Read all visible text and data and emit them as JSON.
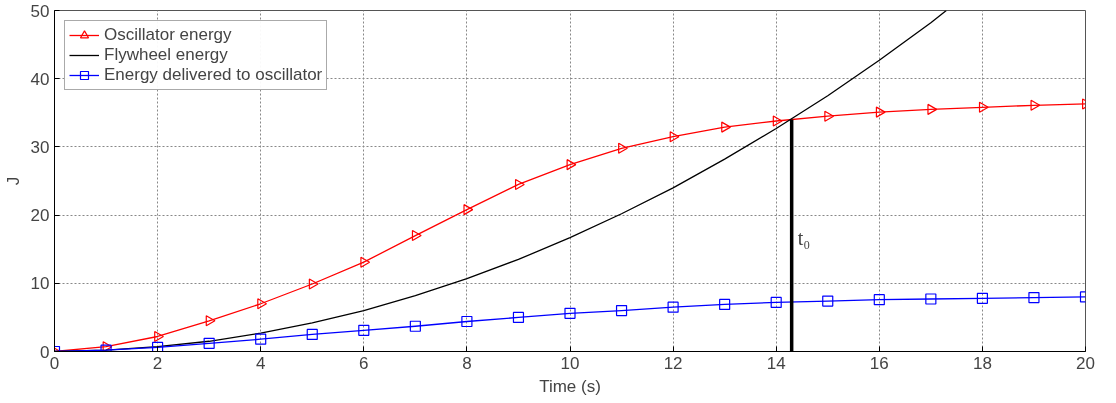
{
  "chart_data": {
    "type": "line",
    "xlabel": "Time (s)",
    "ylabel": "J",
    "x": [
      0,
      1,
      2,
      3,
      4,
      5,
      6,
      7,
      8,
      9,
      10,
      11,
      12,
      13,
      14,
      15,
      16,
      17,
      18,
      19,
      20
    ],
    "xlim": [
      0,
      20
    ],
    "xticks": [
      0,
      2,
      4,
      6,
      8,
      10,
      12,
      14,
      16,
      18,
      20
    ],
    "ylim": [
      0,
      50
    ],
    "yticks": [
      0,
      10,
      20,
      30,
      40,
      50
    ],
    "grid": true,
    "legend": "top left",
    "series": [
      {
        "name": "Oscillator energy",
        "color": "#ff0000",
        "marker": "triangle",
        "values": [
          0,
          0.7,
          2.2,
          4.5,
          7,
          9.9,
          13.1,
          17,
          20.8,
          24.5,
          27.4,
          29.8,
          31.5,
          32.9,
          33.8,
          34.5,
          35.1,
          35.5,
          35.8,
          36.1,
          36.3
        ]
      },
      {
        "name": "Flywheel energy",
        "color": "#000000",
        "marker": "none",
        "x": [
          0,
          1,
          2,
          3,
          4,
          5,
          6,
          7,
          8,
          9,
          10,
          11,
          12,
          13,
          14,
          15,
          16,
          17,
          17.3
        ],
        "values": [
          0,
          0.2,
          0.7,
          1.5,
          2.7,
          4.2,
          6,
          8.2,
          10.7,
          13.5,
          16.7,
          20.2,
          24,
          28.2,
          32.7,
          37.5,
          42.7,
          48.2,
          50
        ]
      },
      {
        "name": "Energy delivered to oscillator",
        "color": "#0000ff",
        "marker": "square",
        "values": [
          0,
          0.2,
          0.6,
          1.2,
          1.8,
          2.5,
          3.1,
          3.7,
          4.4,
          5.0,
          5.6,
          6.0,
          6.5,
          6.9,
          7.2,
          7.4,
          7.6,
          7.7,
          7.8,
          7.9,
          8.0
        ]
      },
      {
        "color": "#000000",
        "marker": "none",
        "x": [
          14.3,
          14.3
        ],
        "values": [
          0,
          34
        ]
      }
    ],
    "annotations": [
      {
        "text": "t₀",
        "x": 14.3,
        "y": 15
      }
    ]
  }
}
